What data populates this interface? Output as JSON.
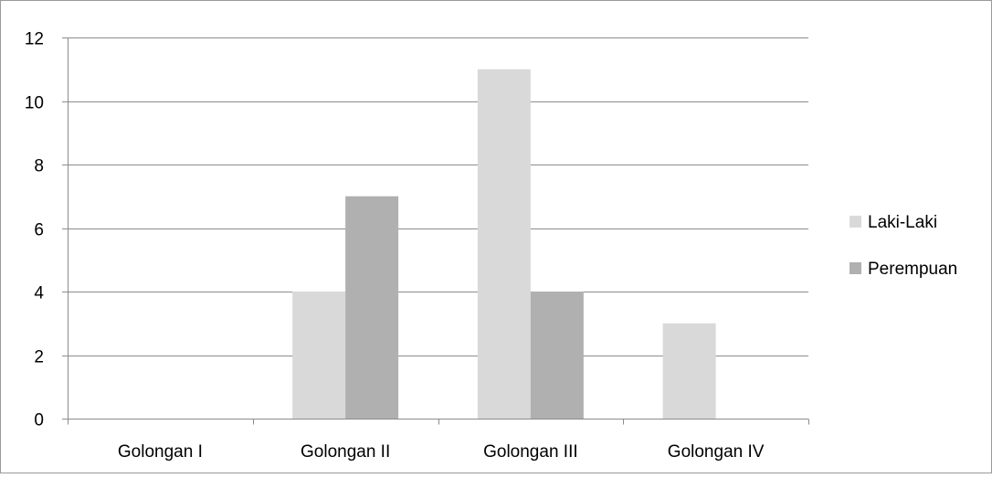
{
  "chart_data": {
    "type": "bar",
    "title": "",
    "xlabel": "",
    "ylabel": "",
    "categories": [
      "Golongan I",
      "Golongan II",
      "Golongan III",
      "Golongan IV"
    ],
    "series": [
      {
        "name": "Laki-Laki",
        "values": [
          0,
          4,
          11,
          3
        ],
        "color": "#d9d9d9"
      },
      {
        "name": "Perempuan",
        "values": [
          0,
          7,
          4,
          0
        ],
        "color": "#b0b0b0"
      }
    ],
    "ylim": [
      0,
      12
    ],
    "yticks": [
      0,
      2,
      4,
      6,
      8,
      10,
      12
    ],
    "grid": true,
    "legend_position": "right"
  }
}
